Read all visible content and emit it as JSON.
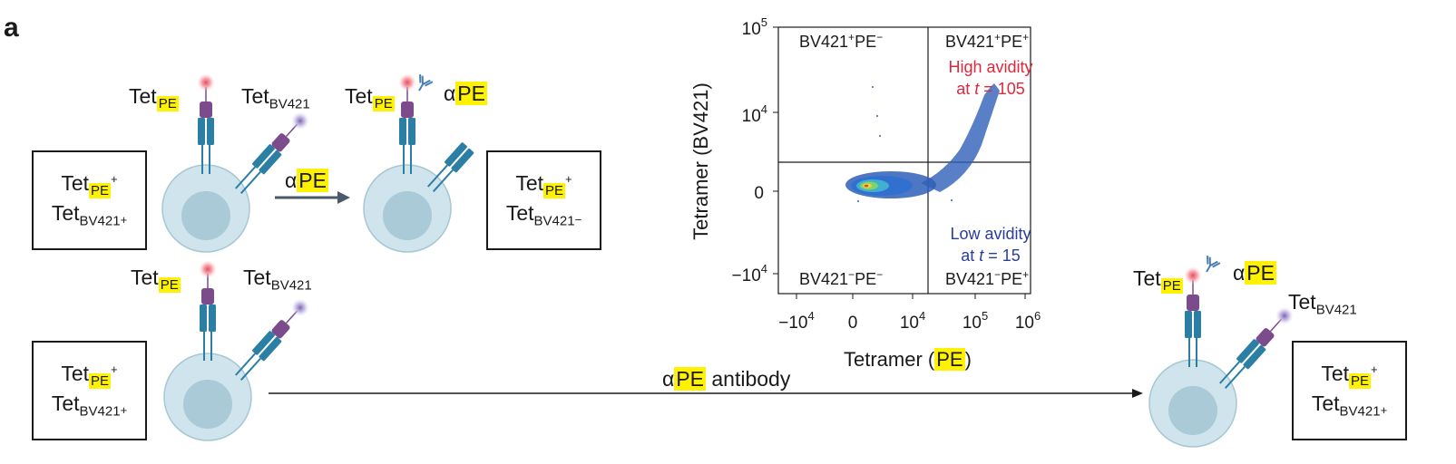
{
  "panel_letter": "a",
  "labels": {
    "tet": "Tet",
    "pe": "PE",
    "bv421": "BV421",
    "alpha": "α",
    "plus": "+",
    "minus": "−",
    "arrow_label_top": "αPE",
    "arrow_label_bottom_suffix": " antibody"
  },
  "boxes": [
    {
      "id": "top-left",
      "pe_sign": "+",
      "bv_sign": "+"
    },
    {
      "id": "top-right",
      "pe_sign": "+",
      "bv_sign": "−"
    },
    {
      "id": "bottom-left",
      "pe_sign": "+",
      "bv_sign": "+"
    },
    {
      "id": "bottom-right",
      "pe_sign": "+",
      "bv_sign": "+"
    }
  ],
  "colors": {
    "cell_fill": "#cfe4ec",
    "nucleus_fill": "#a9cad6",
    "tcr_blue": "#2b7fa4",
    "tet_purple": "#7b4b8c",
    "pe_red": "#e84d5b",
    "bv_purple": "#9a86c8",
    "antibody": "#4a7fb5",
    "arrow_gray": "#4a5a6a",
    "highlight": "#fff200",
    "high_avidity": "#e0283c",
    "low_avidity": "#2b3d9a"
  },
  "chart_data": {
    "type": "scatter",
    "xlabel_prefix": "Tetramer (",
    "xlabel_hl": "PE",
    "xlabel_suffix": ")",
    "ylabel": "Tetramer (BV421)",
    "x_ticks": [
      {
        "base": "−10",
        "exp": "4"
      },
      {
        "base": "0",
        "exp": ""
      },
      {
        "base": "10",
        "exp": "4"
      },
      {
        "base": "10",
        "exp": "5"
      },
      {
        "base": "10",
        "exp": "6"
      }
    ],
    "y_ticks": [
      {
        "base": "10",
        "exp": "5"
      },
      {
        "base": "10",
        "exp": "4"
      },
      {
        "base": "0",
        "exp": ""
      },
      {
        "base": "−10",
        "exp": "4"
      }
    ],
    "quadrants": {
      "upper_left": {
        "left": "BV421",
        "left_sign": "+",
        "right": "PE",
        "right_sign": "−"
      },
      "upper_right": {
        "left": "BV421",
        "left_sign": "+",
        "right": "PE",
        "right_sign": "+"
      },
      "lower_left": {
        "left": "BV421",
        "left_sign": "−",
        "right": "PE",
        "right_sign": "−"
      },
      "lower_right": {
        "left": "BV421",
        "left_sign": "−",
        "right": "PE",
        "right_sign": "+"
      }
    },
    "annotations": {
      "high_line1": "High avidity",
      "high_line2_prefix": "at ",
      "high_t": "t",
      "high_line2_suffix": " = 105",
      "low_line1": "Low avidity",
      "low_line2_prefix": "at ",
      "low_t": "t",
      "low_line2_suffix": " = 15"
    }
  }
}
